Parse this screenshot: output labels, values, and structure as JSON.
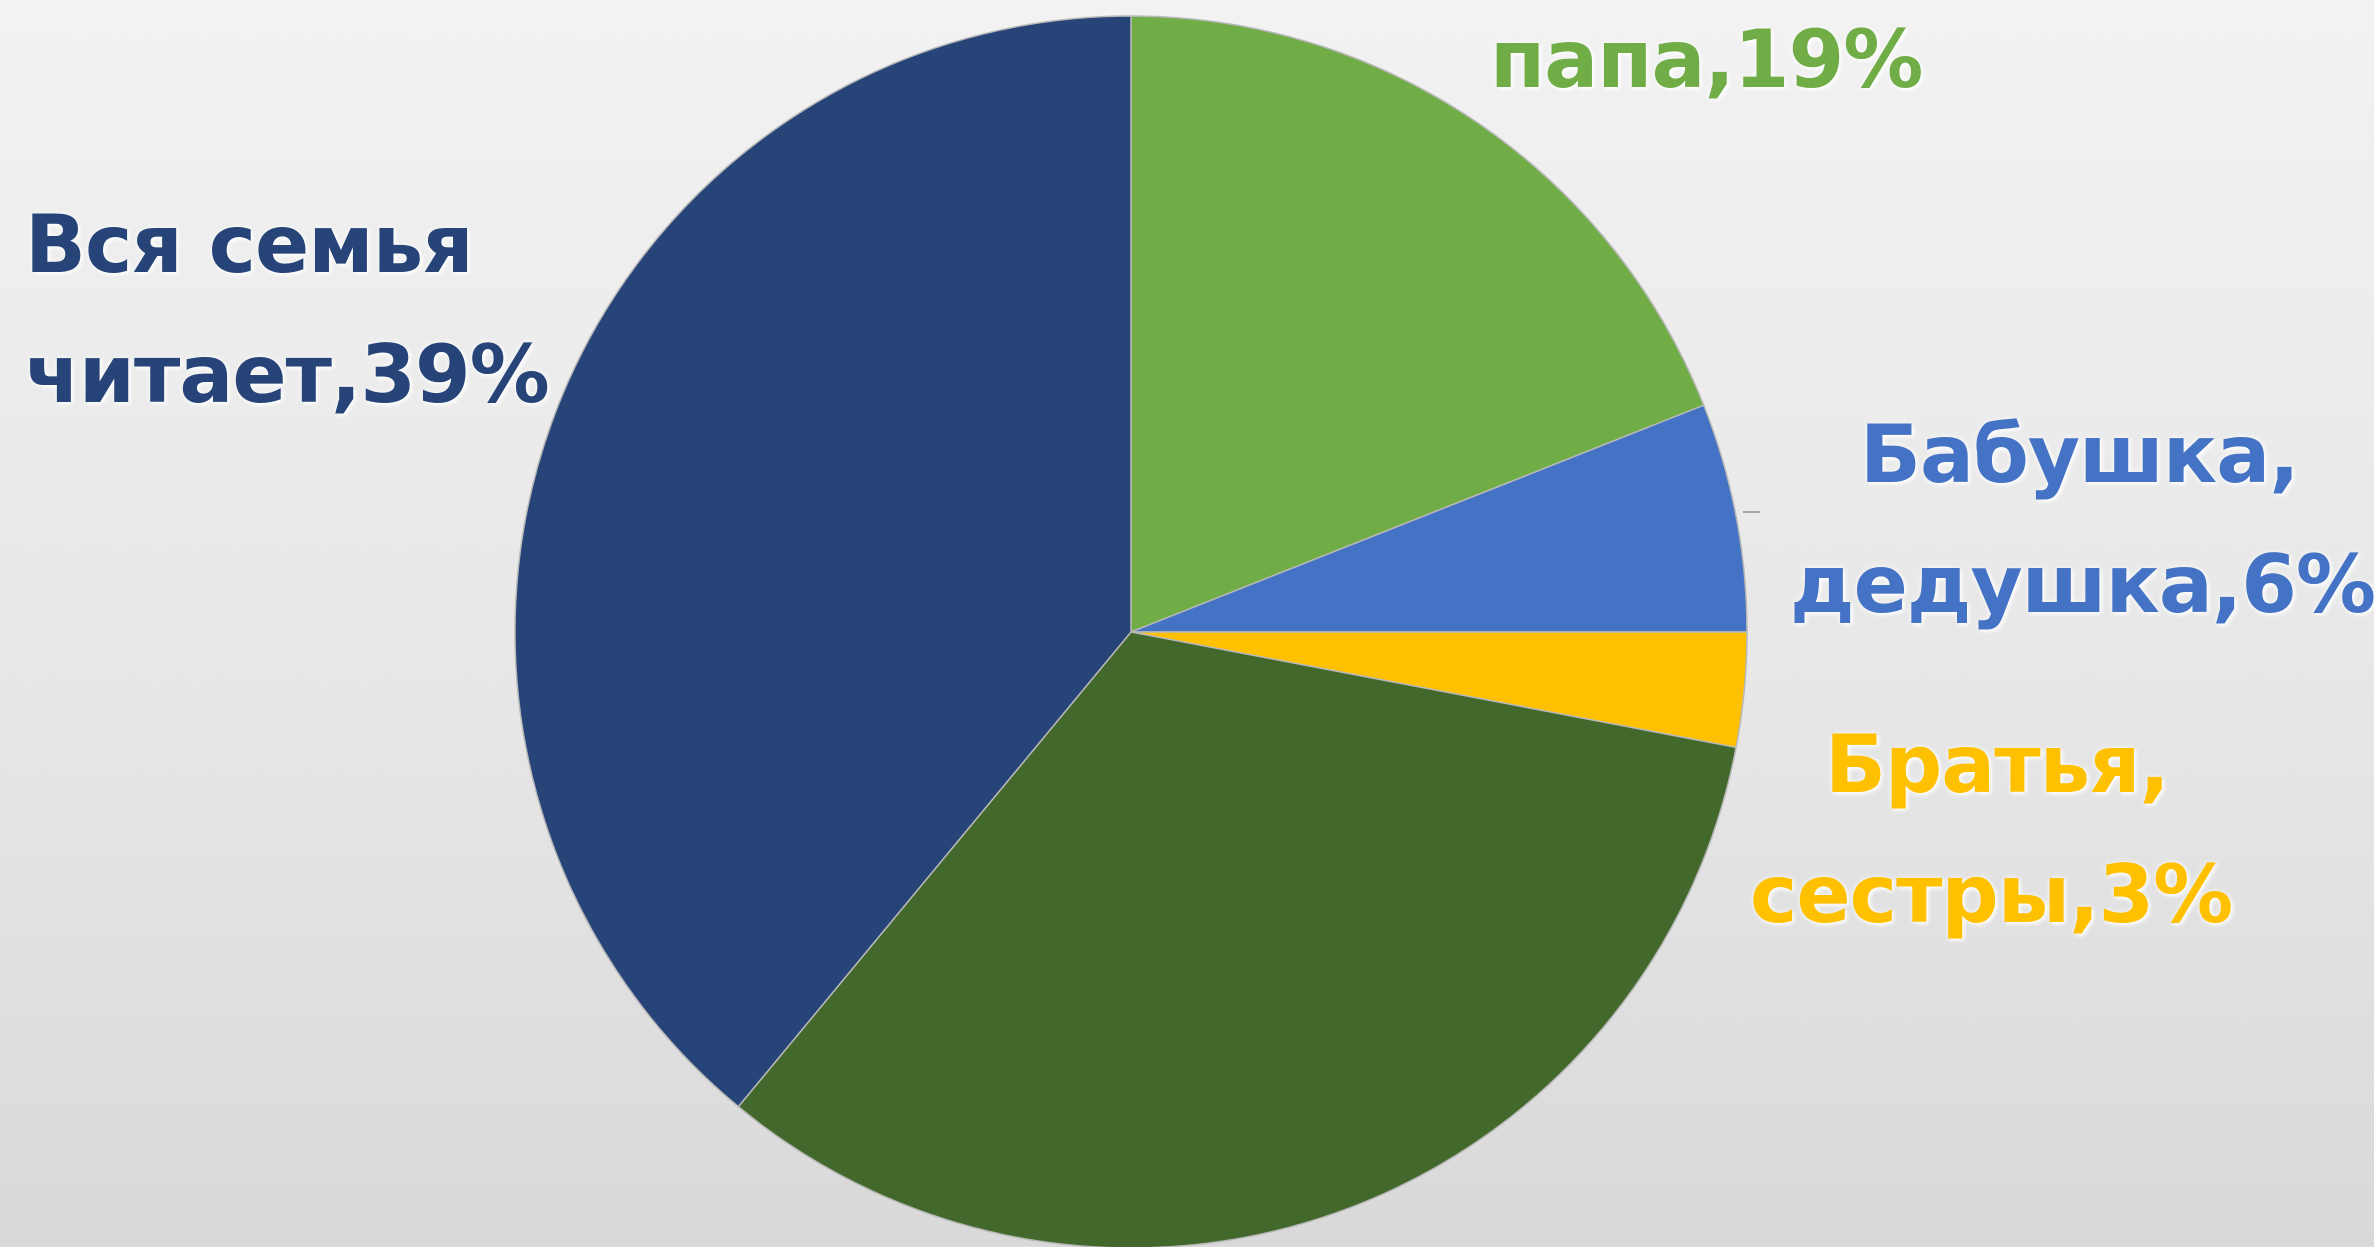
{
  "chart_data": {
    "type": "pie",
    "title": "",
    "slices": [
      {
        "key": "papa",
        "label": "папа,19%",
        "value": 19,
        "color": "#70AD47"
      },
      {
        "key": "grand",
        "label": "Бабушка, дедушка,6%",
        "value": 6,
        "color": "#4472C4"
      },
      {
        "key": "siblings",
        "label": "Братья, сестры,3%",
        "value": 3,
        "color": "#FFC000"
      },
      {
        "key": "unlabeled",
        "label": "",
        "value": 33,
        "color": "#43682B"
      },
      {
        "key": "family",
        "label": "Вся семья читает,39%",
        "value": 39,
        "color": "#264478"
      }
    ],
    "start_angle_deg": 0,
    "direction": "clockwise"
  },
  "labels": {
    "family": {
      "line1": "Вся семья",
      "line2": "читает,39%",
      "color": "#264478"
    },
    "papa": {
      "line1": "папа,19%",
      "color": "#70AD47"
    },
    "grand": {
      "line1": "Бабушка,",
      "line2": "дедушка,6%",
      "color": "#4472C4"
    },
    "siblings": {
      "line1": "Братья,",
      "line2": "сестры,3%",
      "color": "#FFC000"
    }
  }
}
